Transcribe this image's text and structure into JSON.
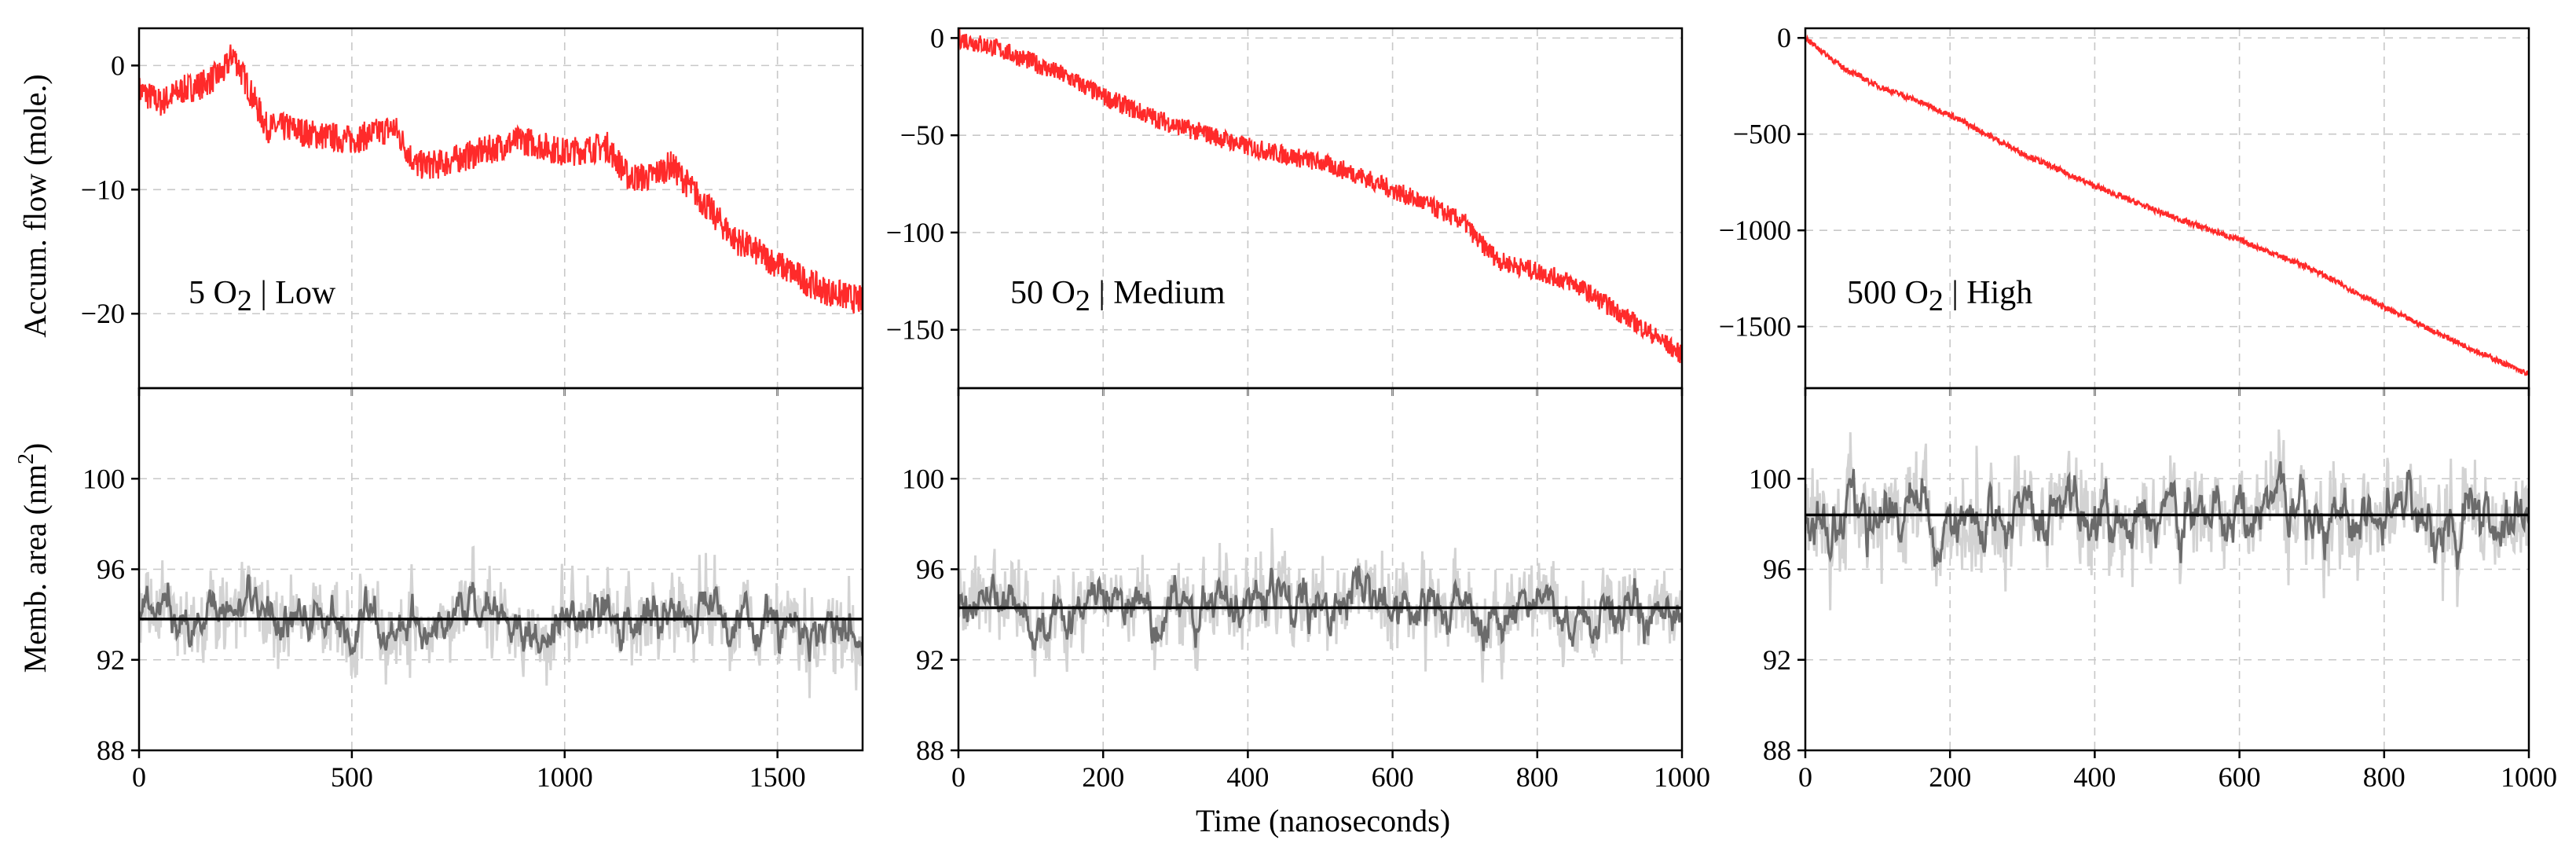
{
  "figure": {
    "xlabel": "Time (nanoseconds)",
    "ylabel_top": "Accum. flow (mole.)",
    "ylabel_bottom_main": "Memb. area (nm",
    "ylabel_bottom_sup": "2",
    "ylabel_bottom_end": ")"
  },
  "colors": {
    "flow": "#ff2a2a",
    "area_raw": "#d3d3d3",
    "area_smooth": "#6b6b6b",
    "area_mean": "#000000"
  },
  "chart_data": [
    {
      "type": "line",
      "panel": "low-flow",
      "label_main": "5 O",
      "label_sub": "2",
      "label_tail": " | Low",
      "ylabel": "Accum. flow (mole.)",
      "xlim": [
        0,
        1700
      ],
      "ylim": [
        -26,
        3
      ],
      "xticks": [
        0,
        500,
        1000,
        1500
      ],
      "xtick_labels": [
        "0",
        "500",
        "1000",
        "1500"
      ],
      "yticks": [
        0,
        -10,
        -20
      ],
      "ytick_labels": [
        "0",
        "−10",
        "−20"
      ],
      "series": [
        {
          "name": "accumulated flow",
          "x": [
            0,
            50,
            100,
            150,
            200,
            220,
            260,
            300,
            350,
            400,
            500,
            600,
            650,
            700,
            800,
            900,
            1000,
            1100,
            1150,
            1200,
            1250,
            1300,
            1400,
            1500,
            1600,
            1700
          ],
          "y": [
            -2,
            -3,
            -2,
            -1.5,
            -0.5,
            1,
            -2,
            -5,
            -5,
            -5.5,
            -6,
            -5,
            -8,
            -8,
            -7,
            -6,
            -7,
            -6.5,
            -9,
            -9,
            -8,
            -10,
            -14,
            -16,
            -18,
            -19
          ],
          "noise": 1.2
        }
      ]
    },
    {
      "type": "line",
      "panel": "medium-flow",
      "label_main": "50 O",
      "label_sub": "2",
      "label_tail": " | Medium",
      "xlim": [
        0,
        1000
      ],
      "ylim": [
        -180,
        5
      ],
      "xticks": [
        0,
        200,
        400,
        600,
        800,
        1000
      ],
      "xtick_labels": [
        "0",
        "200",
        "400",
        "600",
        "800",
        "1000"
      ],
      "yticks": [
        0,
        -50,
        -100,
        -150
      ],
      "ytick_labels": [
        "0",
        "−50",
        "−100",
        "−150"
      ],
      "series": [
        {
          "name": "accumulated flow",
          "x": [
            0,
            50,
            100,
            150,
            200,
            250,
            300,
            350,
            400,
            450,
            500,
            550,
            600,
            650,
            700,
            720,
            750,
            800,
            850,
            900,
            950,
            1000
          ],
          "y": [
            0,
            -5,
            -12,
            -20,
            -30,
            -38,
            -45,
            -50,
            -56,
            -60,
            -64,
            -70,
            -78,
            -86,
            -95,
            -105,
            -115,
            -120,
            -126,
            -138,
            -150,
            -163
          ],
          "noise": 5
        }
      ]
    },
    {
      "type": "line",
      "panel": "high-flow",
      "label_main": "500 O",
      "label_sub": "2",
      "label_tail": " | High",
      "xlim": [
        0,
        1000
      ],
      "ylim": [
        -1820,
        50
      ],
      "xticks": [
        0,
        200,
        400,
        600,
        800,
        1000
      ],
      "xtick_labels": [
        "0",
        "200",
        "400",
        "600",
        "800",
        "1000"
      ],
      "yticks": [
        0,
        -500,
        -1000,
        -1500
      ],
      "ytick_labels": [
        "0",
        "−500",
        "−1000",
        "−1500"
      ],
      "series": [
        {
          "name": "accumulated flow",
          "x": [
            0,
            50,
            100,
            150,
            200,
            300,
            400,
            500,
            600,
            700,
            800,
            900,
            1000
          ],
          "y": [
            0,
            -150,
            -250,
            -320,
            -400,
            -600,
            -770,
            -920,
            -1050,
            -1200,
            -1400,
            -1580,
            -1750
          ],
          "noise": 15
        }
      ]
    },
    {
      "type": "line",
      "panel": "low-area",
      "ylabel": "Memb. area (nm²)",
      "xlim": [
        0,
        1700
      ],
      "ylim": [
        88,
        104
      ],
      "xticks": [
        0,
        500,
        1000,
        1500
      ],
      "xtick_labels": [
        "0",
        "500",
        "1000",
        "1500"
      ],
      "yticks": [
        88,
        92,
        96,
        100
      ],
      "ytick_labels": [
        "88",
        "92",
        "96",
        "100"
      ],
      "mean": 93.8,
      "raw_spread": 2.2,
      "smooth_spread": 1.3,
      "series": [
        {
          "name": "membrane area",
          "x": [
            0,
            1700
          ],
          "y": [
            93.8,
            93.8
          ]
        }
      ]
    },
    {
      "type": "line",
      "panel": "medium-area",
      "xlim": [
        0,
        1000
      ],
      "ylim": [
        88,
        104
      ],
      "xticks": [
        0,
        200,
        400,
        600,
        800,
        1000
      ],
      "xtick_labels": [
        "0",
        "200",
        "400",
        "600",
        "800",
        "1000"
      ],
      "yticks": [
        88,
        92,
        96,
        100
      ],
      "ytick_labels": [
        "88",
        "92",
        "96",
        "100"
      ],
      "mean": 94.3,
      "raw_spread": 2.2,
      "smooth_spread": 1.3,
      "series": [
        {
          "name": "membrane area",
          "x": [
            0,
            1000
          ],
          "y": [
            94.3,
            94.3
          ]
        }
      ]
    },
    {
      "type": "line",
      "panel": "high-area",
      "xlim": [
        0,
        1000
      ],
      "ylim": [
        88,
        104
      ],
      "xticks": [
        0,
        200,
        400,
        600,
        800,
        1000
      ],
      "xtick_labels": [
        "0",
        "200",
        "400",
        "600",
        "800",
        "1000"
      ],
      "yticks": [
        88,
        92,
        96,
        100
      ],
      "ytick_labels": [
        "88",
        "92",
        "96",
        "100"
      ],
      "mean": 98.4,
      "raw_spread": 2.6,
      "smooth_spread": 1.6,
      "series": [
        {
          "name": "membrane area",
          "x": [
            0,
            1000
          ],
          "y": [
            98.4,
            98.4
          ]
        }
      ]
    }
  ]
}
